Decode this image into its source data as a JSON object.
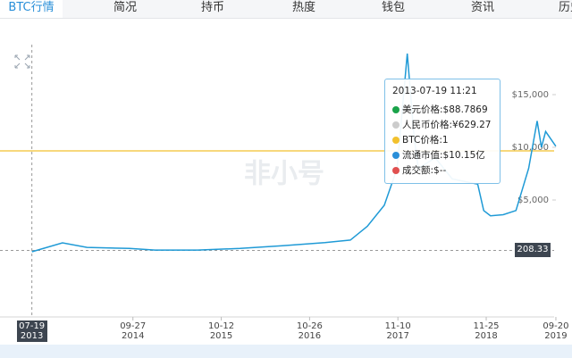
{
  "tabs": [
    "BTC行情",
    "简况",
    "持币",
    "热度",
    "钱包",
    "资讯",
    "历史"
  ],
  "tooltip": {
    "time": "2013-07-19 11:21",
    "rows": [
      {
        "text": "美元价格:$88.7869",
        "color": "#1aa34a"
      },
      {
        "text": "人民币价格:¥629.27",
        "color": "#cccccc"
      },
      {
        "text": "BTC价格:1",
        "color": "#f2c12e"
      },
      {
        "text": "流通市值:$10.15亿",
        "color": "#2a8fd8"
      },
      {
        "text": "成交额:$--",
        "color": "#e05050"
      }
    ]
  },
  "watermark": "非小号",
  "chart_data": {
    "type": "line",
    "x": [
      2013.55,
      2013.91,
      2014.2,
      2014.7,
      2015.0,
      2015.5,
      2016.0,
      2016.5,
      2017.0,
      2017.3,
      2017.5,
      2017.7,
      2017.85,
      2017.97,
      2018.05,
      2018.1,
      2018.3,
      2018.5,
      2018.8,
      2018.87,
      2018.95,
      2019.1,
      2019.25,
      2019.4,
      2019.5,
      2019.55,
      2019.6,
      2019.72
    ],
    "series": [
      {
        "name": "美元价格",
        "color": "#1f9ad6",
        "values": [
          88,
          930,
          500,
          400,
          250,
          250,
          400,
          650,
          950,
          1200,
          2500,
          4500,
          8000,
          18900,
          11000,
          8000,
          9000,
          7000,
          6500,
          4000,
          3500,
          3600,
          4000,
          8000,
          12500,
          10000,
          11500,
          10100
        ]
      }
    ],
    "xlim": [
      2013.28,
      2019.91
    ],
    "ylim": [
      -6100,
      20000
    ],
    "xticks": [
      {
        "value": 2014.74,
        "label": "09-27 2014"
      },
      {
        "value": 2015.78,
        "label": "10-12 2015"
      },
      {
        "value": 2016.82,
        "label": "10-26 2016"
      },
      {
        "value": 2017.86,
        "label": "11-10 2017"
      },
      {
        "value": 2018.9,
        "label": "11-25 2018"
      },
      {
        "value": 2019.72,
        "label": "09-20 2019"
      }
    ],
    "yticks": [
      {
        "value": 5000,
        "label": "$5,000"
      },
      {
        "value": 10000,
        "label": "$10,000"
      },
      {
        "value": 15000,
        "label": "$15,000"
      }
    ],
    "reference_line": {
      "value": 9660,
      "color": "#f2c12e"
    },
    "marker_line": {
      "value": 208.33,
      "label": "208.33"
    },
    "crosshair": {
      "value": 2013.55,
      "label": "07-19 2013"
    }
  }
}
